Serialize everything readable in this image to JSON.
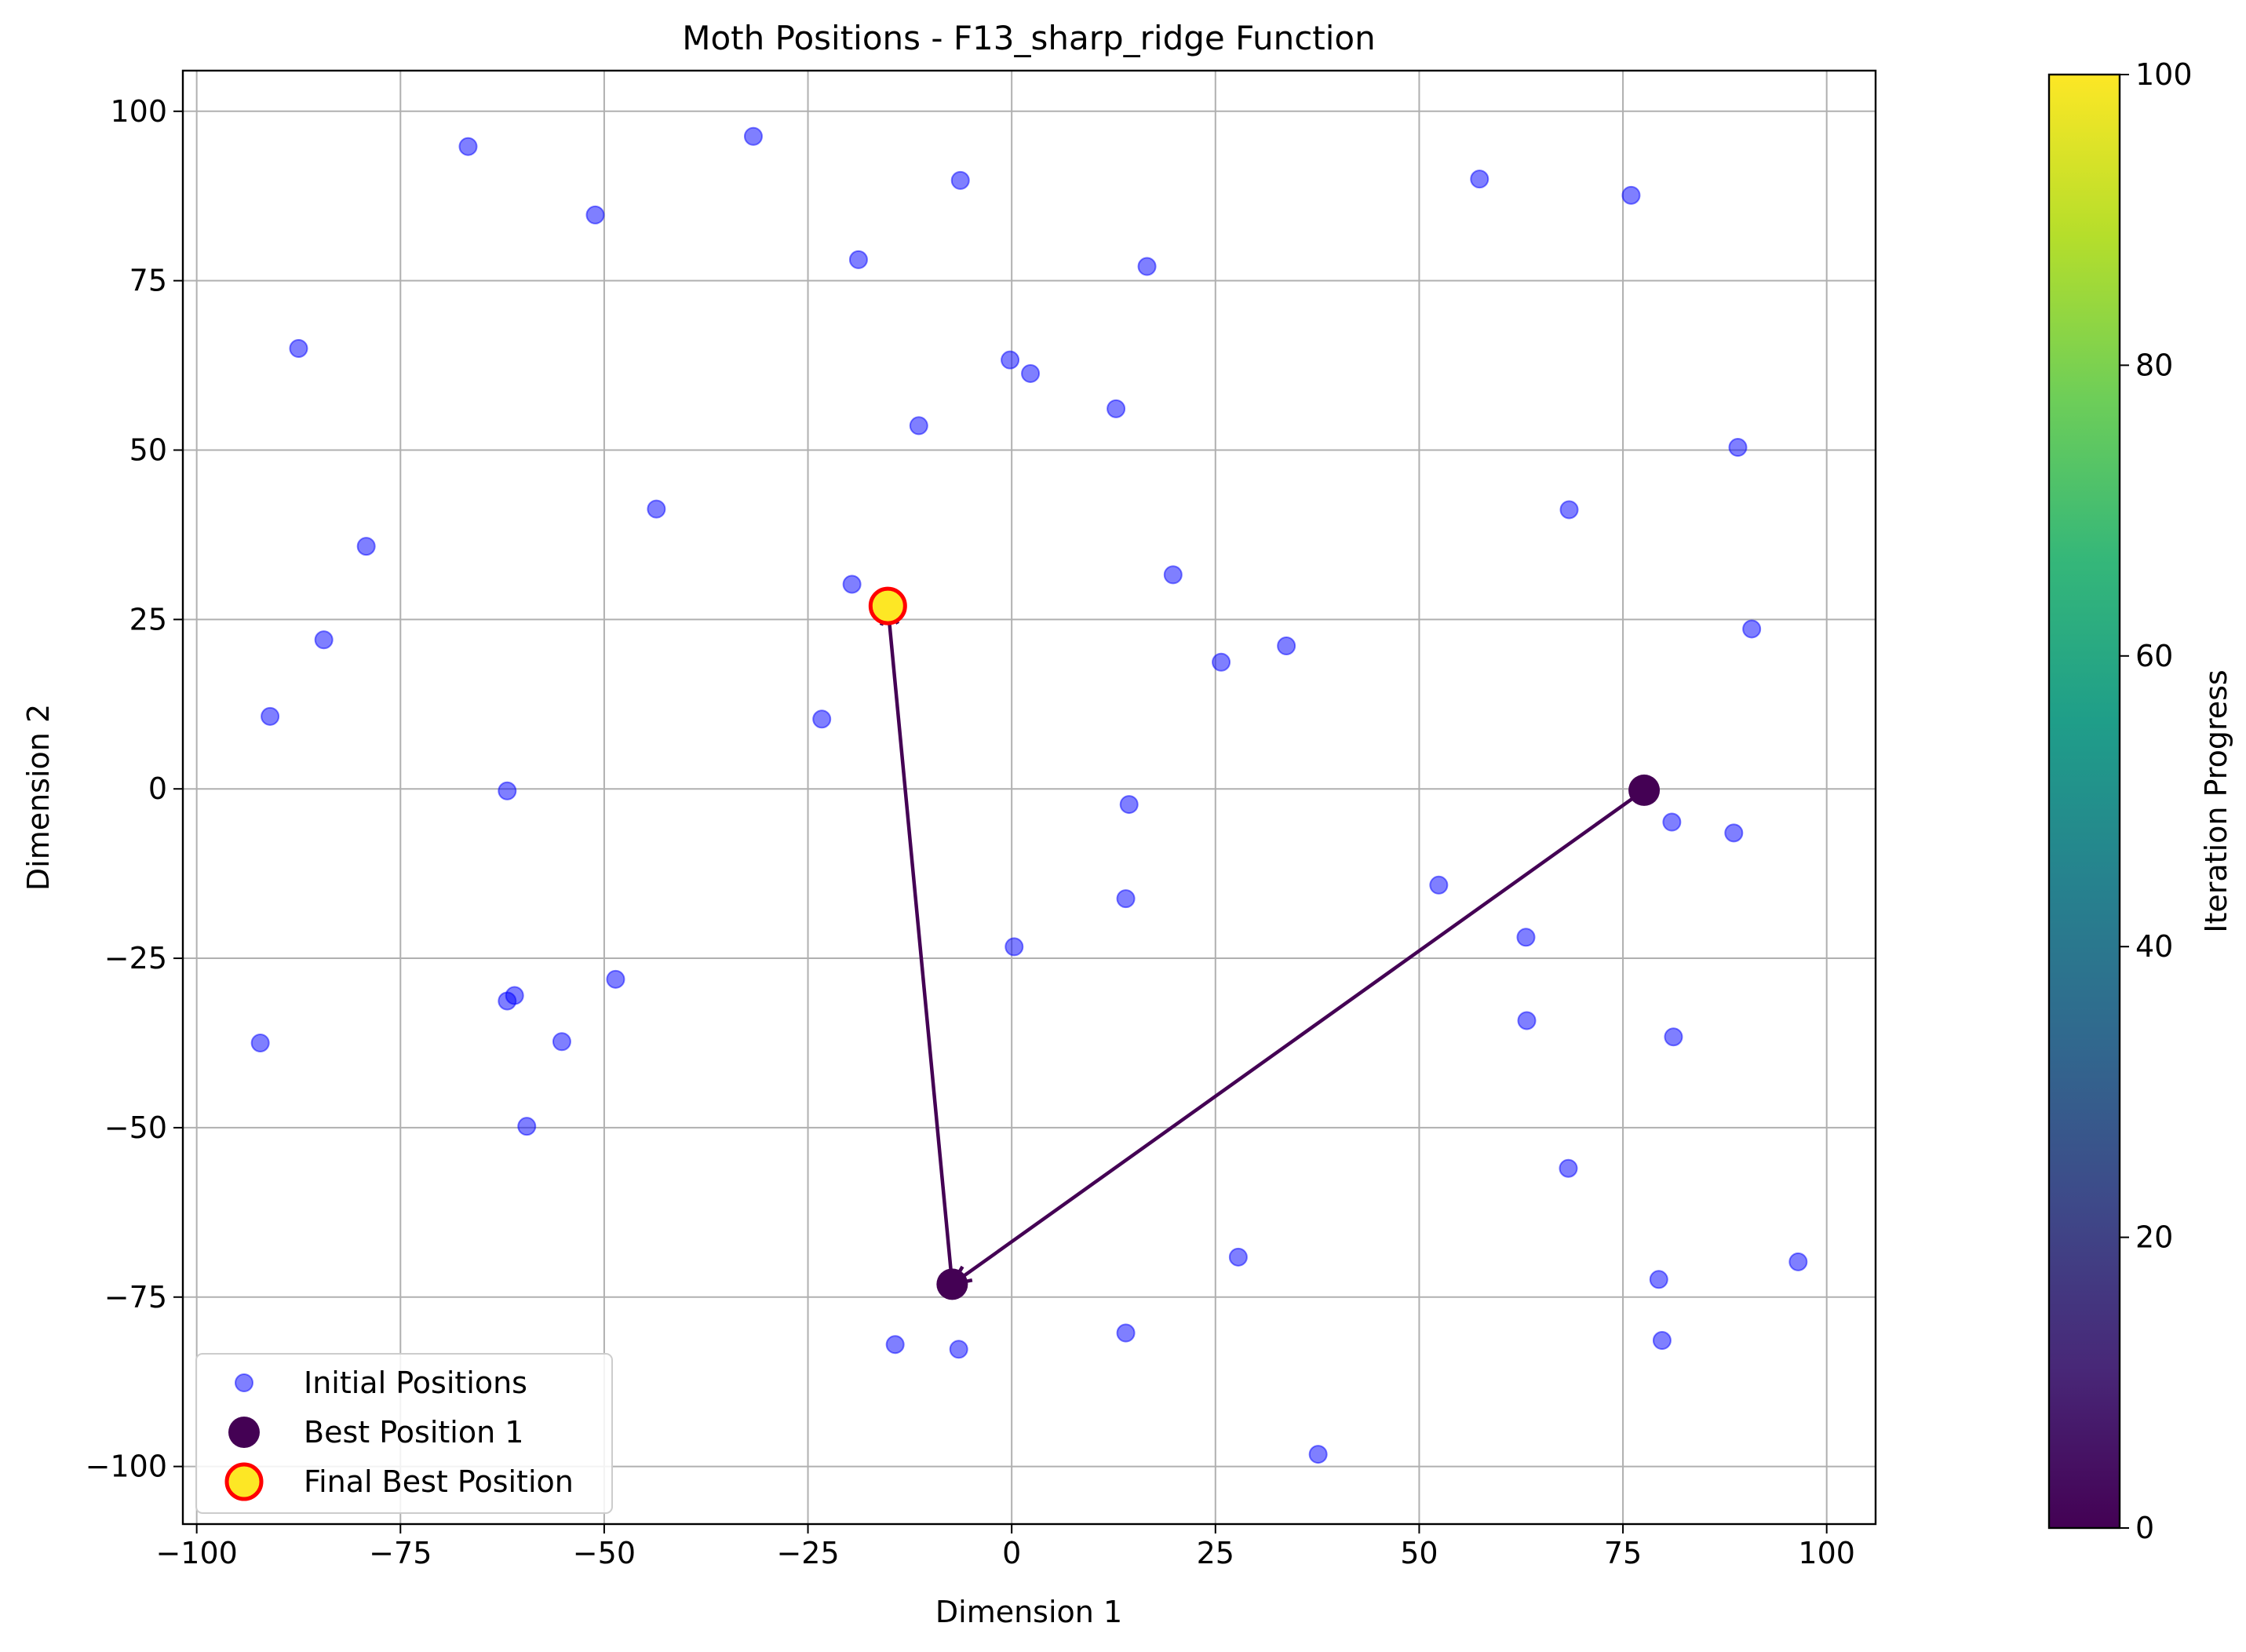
{
  "chart_data": {
    "type": "scatter",
    "title": "Moth Positions - F13_sharp_ridge Function",
    "xlabel": "Dimension 1",
    "ylabel": "Dimension 2",
    "xlim": [
      -101.7,
      106.0
    ],
    "ylim": [
      -108.5,
      106.0
    ],
    "xticks": [
      -100,
      -75,
      -50,
      -25,
      0,
      25,
      50,
      75,
      100
    ],
    "yticks": [
      -100,
      -75,
      -50,
      -25,
      0,
      25,
      50,
      75,
      100
    ],
    "xtick_labels": [
      "−100",
      "−75",
      "−50",
      "−25",
      "0",
      "25",
      "50",
      "75",
      "100"
    ],
    "ytick_labels": [
      "−100",
      "−75",
      "−50",
      "−25",
      "0",
      "25",
      "50",
      "75",
      "100"
    ],
    "grid": true,
    "legend_position": "lower-left",
    "series": [
      {
        "name": "Initial Positions",
        "color": "#0000ff",
        "alpha": 0.5,
        "points": [
          [
            -66.7,
            94.8
          ],
          [
            -31.7,
            96.3
          ],
          [
            -6.3,
            89.8
          ],
          [
            -51.1,
            84.7
          ],
          [
            -18.8,
            78.1
          ],
          [
            16.6,
            77.1
          ],
          [
            57.4,
            90.0
          ],
          [
            76.0,
            87.6
          ],
          [
            -87.5,
            65.0
          ],
          [
            -0.2,
            63.3
          ],
          [
            2.3,
            61.3
          ],
          [
            -11.4,
            53.6
          ],
          [
            12.8,
            56.1
          ],
          [
            89.1,
            50.4
          ],
          [
            -79.2,
            35.8
          ],
          [
            -43.6,
            41.3
          ],
          [
            68.4,
            41.2
          ],
          [
            -19.6,
            30.2
          ],
          [
            19.8,
            31.6
          ],
          [
            -84.4,
            22.0
          ],
          [
            25.7,
            18.7
          ],
          [
            33.7,
            21.1
          ],
          [
            90.8,
            23.6
          ],
          [
            -91.0,
            10.7
          ],
          [
            -23.3,
            10.3
          ],
          [
            -61.9,
            -0.3
          ],
          [
            14.4,
            -2.3
          ],
          [
            81.0,
            -4.9
          ],
          [
            88.6,
            -6.5
          ],
          [
            52.4,
            -14.2
          ],
          [
            14.0,
            -16.2
          ],
          [
            63.1,
            -21.9
          ],
          [
            0.3,
            -23.3
          ],
          [
            -48.6,
            -28.1
          ],
          [
            -61.0,
            -30.5
          ],
          [
            -61.9,
            -31.3
          ],
          [
            -55.2,
            -37.3
          ],
          [
            -92.2,
            -37.5
          ],
          [
            63.2,
            -34.2
          ],
          [
            81.2,
            -36.6
          ],
          [
            -59.5,
            -49.8
          ],
          [
            68.3,
            -56.0
          ],
          [
            27.8,
            -69.1
          ],
          [
            96.5,
            -69.8
          ],
          [
            79.4,
            -72.4
          ],
          [
            -14.3,
            -82.0
          ],
          [
            -6.5,
            -82.7
          ],
          [
            14.0,
            -80.3
          ],
          [
            79.8,
            -81.4
          ],
          [
            37.6,
            -98.2
          ]
        ]
      },
      {
        "name": "Best Position 1",
        "color": "#440154",
        "points": [
          [
            77.6,
            -0.2
          ],
          [
            -7.3,
            -73.1
          ]
        ]
      },
      {
        "name": "Final Best Position",
        "color": "#fde725",
        "edgecolor": "#ff0000",
        "points": [
          [
            -15.2,
            27.0
          ]
        ]
      }
    ],
    "path": [
      [
        77.6,
        -0.2
      ],
      [
        -7.3,
        -73.1
      ],
      [
        -15.2,
        27.0
      ]
    ],
    "path_color": "#440154",
    "colorbar": {
      "label": "Iteration Progress",
      "range": [
        0,
        100
      ],
      "ticks": [
        0,
        20,
        40,
        60,
        80,
        100
      ],
      "tick_labels": [
        "0",
        "20",
        "40",
        "60",
        "80",
        "100"
      ],
      "colormap": "viridis",
      "stops": [
        "#440154",
        "#482878",
        "#3e4989",
        "#31688e",
        "#26828e",
        "#1f9e89",
        "#35b779",
        "#6ece58",
        "#b5de2b",
        "#fde725"
      ]
    }
  }
}
